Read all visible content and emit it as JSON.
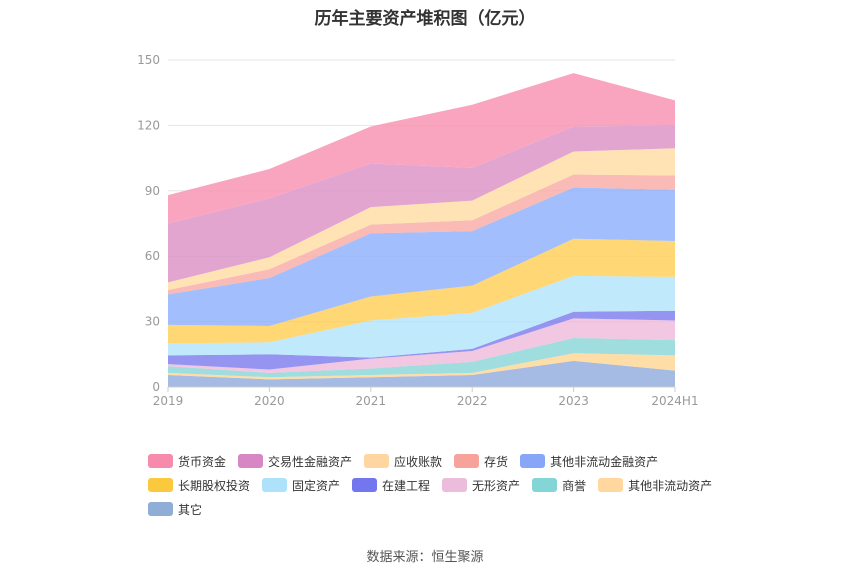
{
  "chart_data": {
    "type": "area",
    "stacked": true,
    "title": "历年主要资产堆积图（亿元）",
    "xlabel": "",
    "ylabel": "",
    "categories": [
      "2019",
      "2020",
      "2021",
      "2022",
      "2023",
      "2024H1"
    ],
    "ylim": [
      0,
      150
    ],
    "yticks": [
      0,
      30,
      60,
      90,
      120,
      150
    ],
    "grid": true,
    "legend_position": "bottom",
    "series": [
      {
        "name": "其它",
        "color": "#8faadc",
        "values": [
          5.5,
          3.5,
          4.5,
          5.5,
          12,
          7.5
        ]
      },
      {
        "name": "其他非流动资产",
        "color": "#ffd591",
        "values": [
          1,
          1,
          1,
          1,
          3.5,
          7
        ]
      },
      {
        "name": "商誉",
        "color": "#87d4d6",
        "values": [
          3,
          2,
          3,
          5,
          7,
          7
        ]
      },
      {
        "name": "无形资产",
        "color": "#efb9d9",
        "values": [
          1,
          1.5,
          4.5,
          5,
          9,
          9
        ]
      },
      {
        "name": "在建工程",
        "color": "#7b7bee",
        "values": [
          4,
          7,
          0.5,
          1,
          3,
          4.5
        ]
      },
      {
        "name": "固定资产",
        "color": "#b0e4fb",
        "values": [
          5.5,
          5.5,
          17,
          16.5,
          16.5,
          15.5
        ]
      },
      {
        "name": "长期股权投资",
        "color": "#ffcd52",
        "values": [
          8.5,
          7.5,
          11,
          12.5,
          17,
          16.5
        ]
      },
      {
        "name": "其他非流动金融资产",
        "color": "#8caefb",
        "values": [
          14,
          22,
          29,
          25,
          23.5,
          23.5
        ]
      },
      {
        "name": "存货",
        "color": "#f9a9a2",
        "values": [
          2,
          4,
          4,
          5,
          6,
          6.5
        ]
      },
      {
        "name": "应收账款",
        "color": "#ffdca3",
        "values": [
          3.5,
          5.5,
          8,
          9,
          10.5,
          12.5
        ]
      },
      {
        "name": "交易性金融资产",
        "color": "#db8ec3",
        "values": [
          27,
          27,
          20,
          15,
          11.5,
          10.5
        ]
      },
      {
        "name": "货币资金",
        "color": "#f98eaf",
        "values": [
          13,
          13.5,
          17,
          29,
          24.5,
          11.5
        ]
      }
    ]
  },
  "legend_rows": [
    [
      {
        "label": "货币资金",
        "color": "#f78bad"
      },
      {
        "label": "交易性金融资产",
        "color": "#d787c3"
      },
      {
        "label": "应收账款",
        "color": "#ffd6a0"
      },
      {
        "label": "存货",
        "color": "#f8a29c"
      },
      {
        "label": "其他非流动金融资产",
        "color": "#88a6f8"
      }
    ],
    [
      {
        "label": "长期股权投资",
        "color": "#fbc93d"
      },
      {
        "label": "固定资产",
        "color": "#ade2fa"
      },
      {
        "label": "在建工程",
        "color": "#7376ef"
      },
      {
        "label": "无形资产",
        "color": "#ebbcdb"
      },
      {
        "label": "商誉",
        "color": "#84d5d6"
      },
      {
        "label": "其他非流动资产",
        "color": "#ffd79f"
      }
    ],
    [
      {
        "label": "其它",
        "color": "#8eaed8"
      }
    ]
  ],
  "source_text": "数据来源：恒生聚源"
}
